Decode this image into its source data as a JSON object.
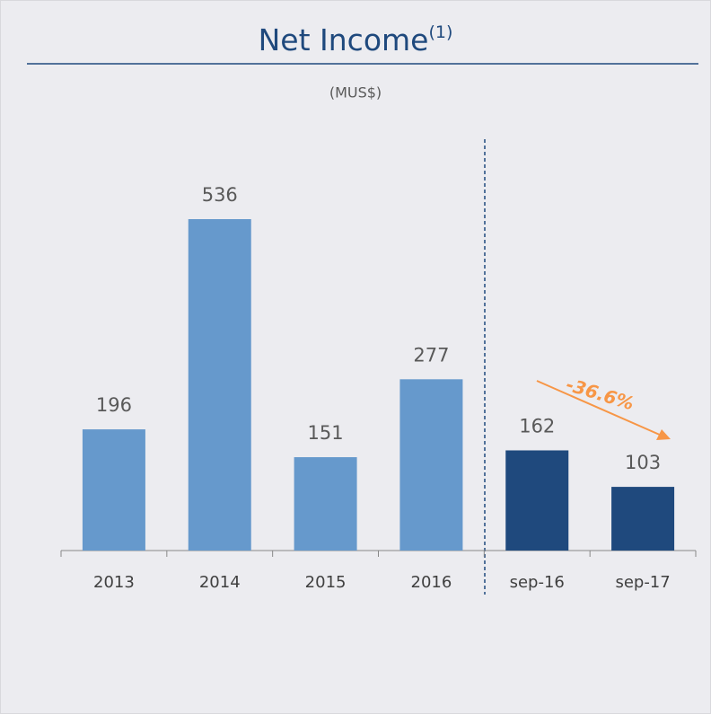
{
  "chart_data": {
    "type": "bar",
    "title": "Net Income",
    "title_note": "(1)",
    "subtitle": "(MUS$)",
    "categories": [
      "2013",
      "2014",
      "2015",
      "2016",
      "sep-16",
      "sep-17"
    ],
    "values": [
      196,
      536,
      151,
      277,
      162,
      103
    ],
    "colors": [
      "#6699cc",
      "#6699cc",
      "#6699cc",
      "#6699cc",
      "#1f497d",
      "#1f497d"
    ],
    "annotations": [
      "-36.6%"
    ]
  }
}
